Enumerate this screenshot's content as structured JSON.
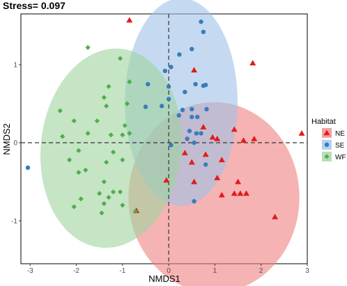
{
  "chart_data": {
    "type": "scatter",
    "title": "Stress= 0.097",
    "xlabel": "NMDS1",
    "ylabel": "NMDS2",
    "xlim": [
      -3.2,
      3.0
    ],
    "ylim": [
      -1.55,
      1.65
    ],
    "xticks": [
      -3,
      -2,
      -1,
      0,
      1,
      2,
      3
    ],
    "yticks": [
      -1,
      0,
      1
    ],
    "grid": false,
    "reference_lines": {
      "x": 0,
      "y": 0,
      "style": "dashed"
    },
    "legend": {
      "title": "Habitat",
      "position": "right"
    },
    "series": [
      {
        "name": "NE",
        "color": "#e41a1c",
        "marker": "triangle",
        "ellipse": {
          "cx": 0.98,
          "cy": -0.7,
          "rx": 1.85,
          "ry": 1.22,
          "color": "#f08080"
        },
        "points": [
          [
            -0.85,
            1.57
          ],
          [
            1.82,
            1.02
          ],
          [
            0.55,
            0.93
          ],
          [
            2.88,
            0.12
          ],
          [
            1.42,
            0.17
          ],
          [
            1.62,
            0.03
          ],
          [
            1.85,
            0.05
          ],
          [
            0.75,
            0.2
          ],
          [
            0.95,
            0.07
          ],
          [
            1.05,
            0.05
          ],
          [
            0.35,
            -0.13
          ],
          [
            0.8,
            -0.15
          ],
          [
            1.15,
            -0.22
          ],
          [
            0.5,
            -0.25
          ],
          [
            1.05,
            -0.45
          ],
          [
            0.55,
            -0.5
          ],
          [
            1.5,
            -0.5
          ],
          [
            1.55,
            -0.65
          ],
          [
            1.68,
            -0.65
          ],
          [
            1.15,
            -0.67
          ],
          [
            1.42,
            -0.65
          ],
          [
            2.3,
            -0.95
          ],
          [
            -0.7,
            -0.87
          ],
          [
            -0.05,
            -0.48
          ]
        ]
      },
      {
        "name": "SE",
        "color": "#377eb8",
        "marker": "circle",
        "ellipse": {
          "cx": 0.27,
          "cy": 0.52,
          "rx": 1.22,
          "ry": 1.33,
          "color": "#9ec2e6"
        },
        "points": [
          [
            0.75,
            1.42
          ],
          [
            0.7,
            1.55
          ],
          [
            0.5,
            1.2
          ],
          [
            0.23,
            1.13
          ],
          [
            -0.08,
            0.92
          ],
          [
            0.05,
            0.97
          ],
          [
            0.58,
            0.75
          ],
          [
            0.75,
            0.73
          ],
          [
            0.8,
            0.74
          ],
          [
            -0.45,
            0.75
          ],
          [
            0.0,
            0.72
          ],
          [
            0.35,
            0.65
          ],
          [
            -0.5,
            0.46
          ],
          [
            -0.15,
            0.47
          ],
          [
            0.0,
            0.56
          ],
          [
            0.3,
            0.42
          ],
          [
            0.5,
            0.43
          ],
          [
            0.82,
            0.43
          ],
          [
            0.22,
            0.35
          ],
          [
            0.5,
            0.33
          ],
          [
            0.62,
            0.33
          ],
          [
            0.45,
            0.15
          ],
          [
            0.6,
            0.12
          ],
          [
            0.7,
            0.12
          ],
          [
            0.4,
            0.05
          ],
          [
            0.55,
            0.0
          ],
          [
            0.05,
            -0.03
          ],
          [
            0.8,
            -0.28
          ],
          [
            -3.05,
            -0.32
          ],
          [
            0.55,
            -0.75
          ]
        ]
      },
      {
        "name": "WF",
        "color": "#4daf4a",
        "marker": "diamond",
        "ellipse": {
          "cx": -1.25,
          "cy": -0.07,
          "rx": 1.52,
          "ry": 1.28,
          "color": "#9fd39f",
          "angle": 6
        },
        "points": [
          [
            -1.75,
            1.22
          ],
          [
            -1.05,
            1.08
          ],
          [
            -0.85,
            0.78
          ],
          [
            -1.3,
            0.72
          ],
          [
            -1.4,
            0.58
          ],
          [
            -0.9,
            0.5
          ],
          [
            -1.35,
            0.47
          ],
          [
            -2.35,
            0.41
          ],
          [
            -1.55,
            0.28
          ],
          [
            -2.05,
            0.28
          ],
          [
            -0.95,
            0.22
          ],
          [
            -1.0,
            0.1
          ],
          [
            -1.75,
            0.12
          ],
          [
            -1.25,
            0.1
          ],
          [
            -2.3,
            0.08
          ],
          [
            -0.85,
            0.12
          ],
          [
            -1.95,
            -0.1
          ],
          [
            -1.2,
            -0.12
          ],
          [
            -2.15,
            -0.22
          ],
          [
            -1.35,
            -0.25
          ],
          [
            -1.8,
            -0.35
          ],
          [
            -1.0,
            -0.22
          ],
          [
            -1.95,
            -0.38
          ],
          [
            -1.4,
            -0.5
          ],
          [
            -1.2,
            -0.63
          ],
          [
            -1.05,
            -0.63
          ],
          [
            -1.5,
            -0.65
          ],
          [
            -1.3,
            -0.7
          ],
          [
            -1.9,
            -0.72
          ],
          [
            -1.4,
            -0.78
          ],
          [
            -1.0,
            -0.8
          ],
          [
            -2.05,
            -0.82
          ],
          [
            -1.45,
            -0.9
          ],
          [
            -0.72,
            -0.88
          ]
        ]
      }
    ]
  }
}
